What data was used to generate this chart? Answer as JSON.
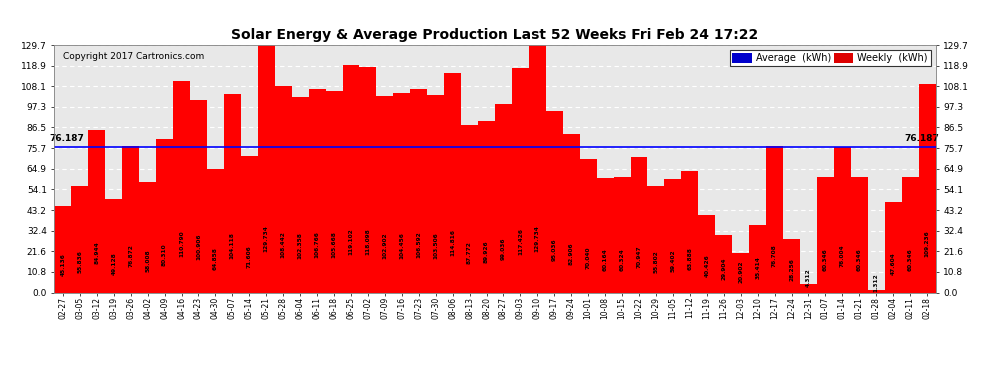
{
  "title": "Solar Energy & Average Production Last 52 Weeks Fri Feb 24 17:22",
  "copyright": "Copyright 2017 Cartronics.com",
  "average_line": 76.187,
  "average_label": "76.187",
  "bar_color": "#FF0000",
  "average_line_color": "#0000FF",
  "background_color": "#FFFFFF",
  "plot_bg_color": "#E8E8E8",
  "ylim": [
    0,
    129.7
  ],
  "yticks": [
    0.0,
    10.8,
    21.6,
    32.4,
    43.2,
    54.1,
    64.9,
    75.7,
    86.5,
    97.3,
    108.1,
    118.9,
    129.7
  ],
  "legend_avg_color": "#0000CC",
  "legend_weekly_color": "#DD0000",
  "categories": [
    "02-27",
    "03-05",
    "03-12",
    "03-19",
    "03-26",
    "04-02",
    "04-09",
    "04-16",
    "04-23",
    "04-30",
    "05-07",
    "05-14",
    "05-21",
    "05-28",
    "06-04",
    "06-11",
    "06-18",
    "06-25",
    "07-02",
    "07-09",
    "07-16",
    "07-23",
    "07-30",
    "08-06",
    "08-13",
    "08-20",
    "08-27",
    "09-03",
    "09-10",
    "09-17",
    "09-24",
    "10-01",
    "10-08",
    "10-15",
    "10-22",
    "10-29",
    "11-05",
    "11-12",
    "11-19",
    "11-26",
    "12-03",
    "12-10",
    "12-17",
    "12-24",
    "12-31",
    "01-07",
    "01-14",
    "01-21",
    "01-28",
    "02-04",
    "02-11",
    "02-18"
  ],
  "values": [
    45.136,
    55.836,
    84.944,
    49.128,
    76.872,
    58.008,
    80.31,
    110.79,
    100.906,
    64.858,
    104.118,
    71.606,
    129.734,
    108.442,
    102.358,
    106.766,
    105.668,
    119.102,
    118.098,
    102.902,
    104.456,
    106.592,
    103.506,
    114.816,
    87.772,
    89.926,
    99.036,
    117.426,
    129.734,
    95.036,
    82.906,
    70.04,
    60.164,
    60.324,
    70.947,
    55.802,
    59.402,
    63.888,
    40.426,
    29.904,
    20.902,
    35.414,
    76.708,
    28.256,
    4.312,
    60.346,
    76.004,
    60.346,
    1.312,
    47.604,
    60.346,
    109.236
  ]
}
